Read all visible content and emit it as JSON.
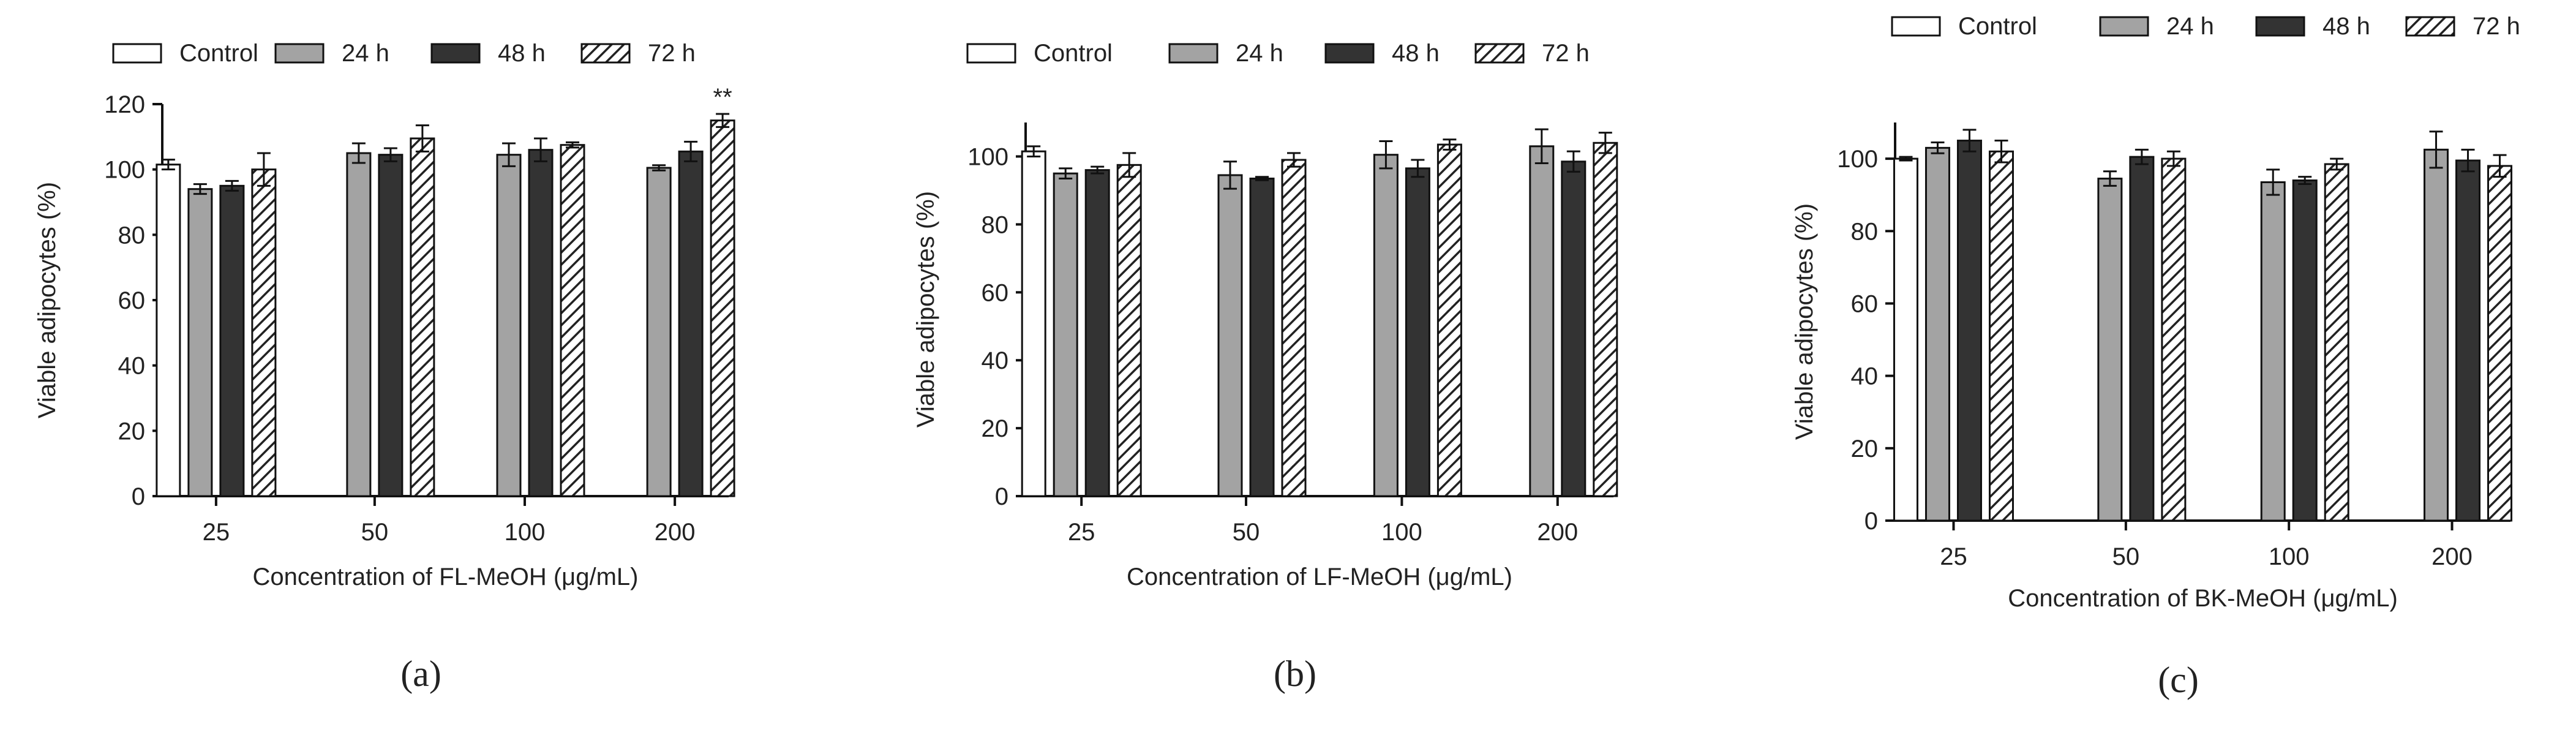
{
  "legend": [
    {
      "name": "Control",
      "fill": "white"
    },
    {
      "name": "24 h",
      "fill": "#a3a3a3"
    },
    {
      "name": "48 h",
      "fill": "#333333"
    },
    {
      "name": "72 h",
      "fill": "hatch"
    }
  ],
  "colors": {
    "control": "#ffffff",
    "h24": "#a3a3a3",
    "h48": "#333333",
    "h72_stripe": "#222222",
    "axis": "#111111"
  },
  "chart_data": [
    {
      "type": "bar",
      "panel_label": "(a)",
      "xlabel": "Concentration of FL-MeOH (μg/mL)",
      "ylabel": "Viable adipocytes (%)",
      "ylim": [
        0,
        120
      ],
      "yticks": [
        0,
        20,
        40,
        60,
        80,
        100,
        120
      ],
      "categories": [
        "25",
        "50",
        "100",
        "200"
      ],
      "series": [
        {
          "name": "Control",
          "values": [
            101.5,
            null,
            null,
            null
          ],
          "errors": [
            1.5,
            null,
            null,
            null
          ]
        },
        {
          "name": "24 h",
          "values": [
            94,
            105,
            104.5,
            100.5
          ],
          "errors": [
            1.5,
            3,
            3.5,
            0.8
          ]
        },
        {
          "name": "48 h",
          "values": [
            95,
            104.5,
            106,
            105.5
          ],
          "errors": [
            1.5,
            2,
            3.5,
            3
          ]
        },
        {
          "name": "72 h",
          "values": [
            100,
            109.5,
            107.5,
            115
          ],
          "errors": [
            5,
            4,
            0.8,
            2
          ]
        }
      ],
      "annotations": [
        {
          "category": "200",
          "series": "72 h",
          "text": "**"
        }
      ]
    },
    {
      "type": "bar",
      "panel_label": "(b)",
      "xlabel": "Concentration of LF-MeOH (μg/mL)",
      "ylabel": "Viable adipocytes (%)",
      "ylim": [
        0,
        110
      ],
      "yticks": [
        0,
        20,
        40,
        60,
        80,
        100
      ],
      "categories": [
        "25",
        "50",
        "100",
        "200"
      ],
      "series": [
        {
          "name": "Control",
          "values": [
            101.5,
            null,
            null,
            null
          ],
          "errors": [
            1.5,
            null,
            null,
            null
          ]
        },
        {
          "name": "24 h",
          "values": [
            95,
            94.5,
            100.5,
            103
          ],
          "errors": [
            1.5,
            4,
            4,
            5
          ]
        },
        {
          "name": "48 h",
          "values": [
            96,
            93.5,
            96.5,
            98.5
          ],
          "errors": [
            1,
            0.5,
            2.5,
            3
          ]
        },
        {
          "name": "72 h",
          "values": [
            97.5,
            99,
            103.5,
            104
          ],
          "errors": [
            3.5,
            2,
            1.5,
            3
          ]
        }
      ],
      "annotations": []
    },
    {
      "type": "bar",
      "panel_label": "(c)",
      "xlabel": "Concentration of BK-MeOH (μg/mL)",
      "ylabel": "Viable adipocytes (%)",
      "ylim": [
        0,
        110
      ],
      "yticks": [
        0,
        20,
        40,
        60,
        80,
        100
      ],
      "categories": [
        "25",
        "50",
        "100",
        "200"
      ],
      "series": [
        {
          "name": "Control",
          "values": [
            100,
            null,
            null,
            null
          ],
          "errors": [
            0.5,
            null,
            null,
            null
          ]
        },
        {
          "name": "24 h",
          "values": [
            103,
            94.5,
            93.5,
            102.5
          ],
          "errors": [
            1.5,
            2,
            3.5,
            5
          ]
        },
        {
          "name": "48 h",
          "values": [
            105,
            100.5,
            94,
            99.5
          ],
          "errors": [
            3,
            2,
            1,
            3
          ]
        },
        {
          "name": "72 h",
          "values": [
            102,
            100,
            98.5,
            98
          ],
          "errors": [
            3,
            2,
            1.5,
            3
          ]
        }
      ],
      "annotations": []
    }
  ]
}
